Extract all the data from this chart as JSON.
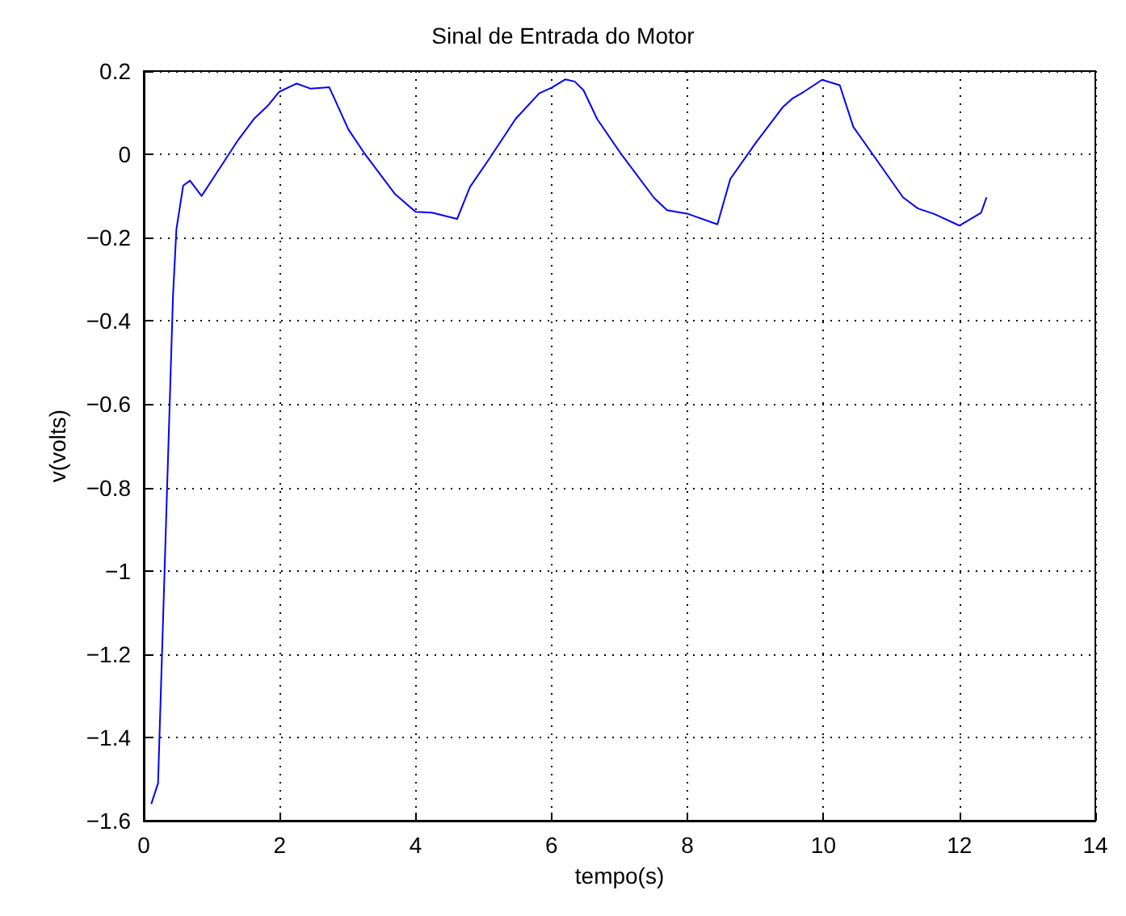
{
  "chart_data": {
    "type": "line",
    "title": "Sinal de Entrada do Motor",
    "xlabel": "tempo(s)",
    "ylabel": "v(volts)",
    "x": [
      0.11,
      0.21,
      0.43,
      0.48,
      0.58,
      0.68,
      0.85,
      1.09,
      1.39,
      1.62,
      1.82,
      1.99,
      2.25,
      2.45,
      2.73,
      3.01,
      3.24,
      3.7,
      4.0,
      4.24,
      4.61,
      4.8,
      5.09,
      5.47,
      5.82,
      6.0,
      6.2,
      6.34,
      6.47,
      6.67,
      7.01,
      7.51,
      7.7,
      8.01,
      8.44,
      8.63,
      9.01,
      9.4,
      9.55,
      9.71,
      9.98,
      10.24,
      10.44,
      10.63,
      11.17,
      11.39,
      11.63,
      12.0,
      12.32,
      12.4
    ],
    "series": [
      {
        "color": "#0000ff",
        "values": [
          -1.56,
          -1.51,
          -0.34,
          -0.18,
          -0.075,
          -0.063,
          -0.1,
          -0.04,
          0.035,
          0.085,
          0.116,
          0.15,
          0.17,
          0.158,
          0.161,
          0.06,
          0.004,
          -0.096,
          -0.138,
          -0.14,
          -0.155,
          -0.078,
          -0.009,
          0.085,
          0.147,
          0.16,
          0.18,
          0.175,
          0.154,
          0.085,
          0.004,
          -0.105,
          -0.134,
          -0.143,
          -0.168,
          -0.059,
          0.029,
          0.113,
          0.135,
          0.15,
          0.179,
          0.166,
          0.066,
          0.022,
          -0.103,
          -0.13,
          -0.143,
          -0.171,
          -0.14,
          -0.103
        ]
      }
    ],
    "xlim": [
      0,
      14
    ],
    "xticks": [
      0,
      2,
      4,
      6,
      8,
      10,
      12,
      14
    ],
    "ylim": [
      -1.6,
      0.2
    ],
    "yticks": [
      -1.6,
      -1.4,
      -1.2,
      -1,
      -0.8,
      -0.6,
      -0.4,
      -0.2,
      0,
      0.2
    ],
    "grid": true,
    "marker": "none",
    "line_style": "solid"
  }
}
